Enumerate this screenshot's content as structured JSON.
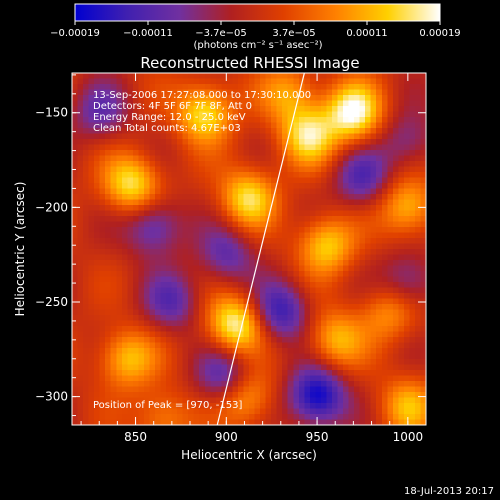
{
  "chart_data": {
    "type": "heatmap",
    "title": "Reconstructed RHESSI Image",
    "xlabel": "Heliocentric X (arcsec)",
    "ylabel": "Heliocentric Y (arcsec)",
    "xlim": [
      815,
      1010
    ],
    "ylim": [
      -315,
      -129
    ],
    "xticks": [
      850,
      900,
      950,
      1000
    ],
    "yticks": [
      -150,
      -200,
      -250,
      -300
    ],
    "colorbar": {
      "ticks": [
        "−0.00019",
        "−0.00011",
        "−3.7e−05",
        "3.7e−05",
        "0.00011",
        "0.00019"
      ],
      "unit_text": "(photons cm⁻² s⁻¹ asec⁻²)",
      "range": [
        -0.00019,
        0.00019
      ],
      "colors": [
        "#0000d0",
        "#4020b0",
        "#7030a0",
        "#b02020",
        "#e04000",
        "#ff8000",
        "#ffd000",
        "#ffffff"
      ]
    },
    "annotations": {
      "time": "13-Sep-2006 17:27:08.000 to 17:30:10.000",
      "detectors": "Detectors: 4F 5F 6F 7F 8F, Att 0",
      "energy": "Energy Range: 12.0 - 25.0 keV",
      "method": "Clean     Total counts: 4.67E+03",
      "peak": "Position of Peak = [970, -153]"
    },
    "limb_line": {
      "x": [
        895,
        943
      ],
      "y": [
        -315,
        -129
      ]
    },
    "sources": [
      {
        "x": 970,
        "y": -150,
        "value": 0.00019
      },
      {
        "x": 888,
        "y": -150,
        "value": 0.00016
      },
      {
        "x": 945,
        "y": -162,
        "value": 0.00015
      },
      {
        "x": 848,
        "y": -188,
        "value": 0.00016
      },
      {
        "x": 912,
        "y": -195,
        "value": 0.00015
      },
      {
        "x": 1000,
        "y": -200,
        "value": 0.00013
      },
      {
        "x": 955,
        "y": -220,
        "value": 0.00014
      },
      {
        "x": 905,
        "y": -262,
        "value": 0.00018
      },
      {
        "x": 960,
        "y": -270,
        "value": 0.00012
      },
      {
        "x": 845,
        "y": -280,
        "value": 0.00013
      },
      {
        "x": 1000,
        "y": -305,
        "value": 0.00011
      },
      {
        "x": 910,
        "y": -300,
        "value": 0.00013
      },
      {
        "x": 865,
        "y": -312,
        "value": 9e-05
      },
      {
        "x": 935,
        "y": -140,
        "value": 0.0001
      },
      {
        "x": 990,
        "y": -255,
        "value": 0.0001
      }
    ],
    "negatives": [
      {
        "x": 950,
        "y": -300,
        "value": -0.00019
      },
      {
        "x": 930,
        "y": -255,
        "value": -0.00014
      },
      {
        "x": 900,
        "y": -290,
        "value": -0.00013
      },
      {
        "x": 860,
        "y": -210,
        "value": -0.00012
      },
      {
        "x": 900,
        "y": -225,
        "value": -0.0001
      },
      {
        "x": 975,
        "y": -185,
        "value": -0.00011
      },
      {
        "x": 1000,
        "y": -240,
        "value": -0.0001
      },
      {
        "x": 830,
        "y": -150,
        "value": -9e-05
      },
      {
        "x": 870,
        "y": -250,
        "value": -0.0001
      },
      {
        "x": 1000,
        "y": -165,
        "value": -8e-05
      }
    ]
  },
  "footer": {
    "timestamp": "18-Jul-2013 20:17"
  }
}
